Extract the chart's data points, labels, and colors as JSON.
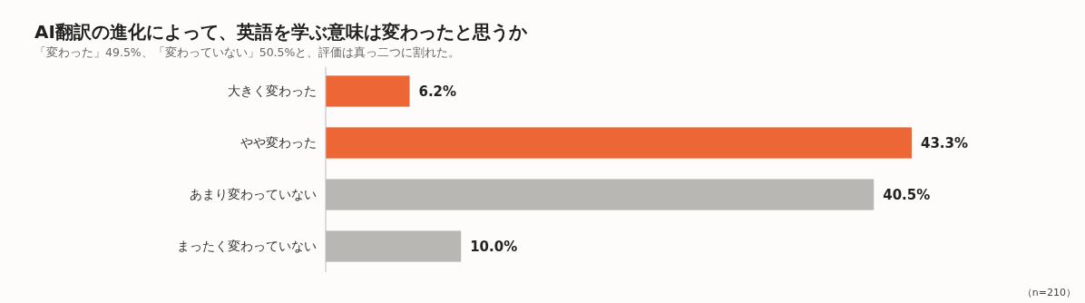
{
  "chart_data": {
    "type": "bar",
    "orientation": "horizontal",
    "title": "AI翻訳の進化によって、英語を学ぶ意味は変わったと思うか",
    "subtitle": "「変わった」49.5%、「変わっていない」50.5%と、評価は真っ二つに割れた。",
    "categories": [
      "大きく変わった",
      "やや変わった",
      "あまり変わっていない",
      "まったく変わっていない"
    ],
    "values": [
      6.2,
      43.3,
      40.5,
      10.0
    ],
    "colors": [
      "#ec6735",
      "#ec6735",
      "#b8b7b3",
      "#b8b7b3"
    ],
    "value_labels": [
      "6.2%",
      "43.3%",
      "40.5%",
      "10.0%"
    ],
    "annotations": [
      "（n=210）"
    ]
  }
}
